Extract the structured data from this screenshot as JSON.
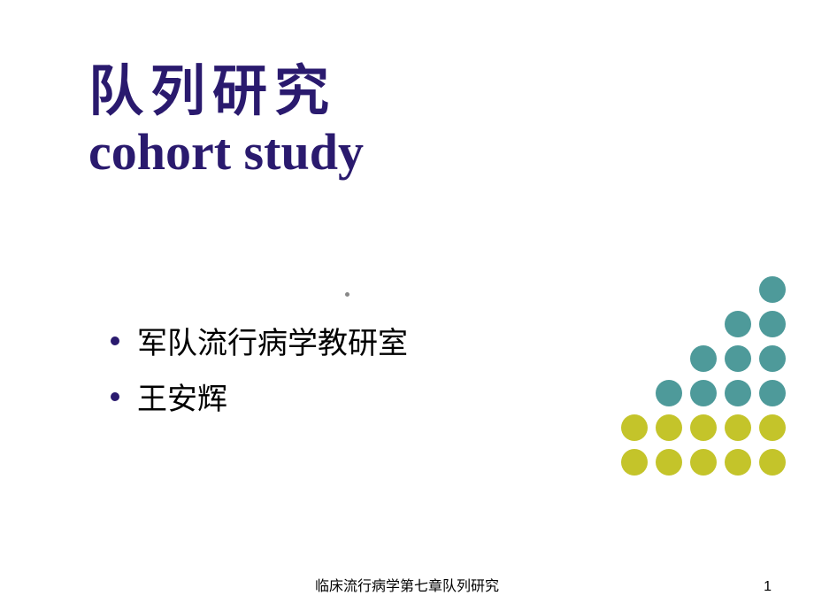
{
  "title": {
    "chinese": "队列研究",
    "english": "cohort  study",
    "color": "#2a1a6e",
    "title_cn_fontsize": 62,
    "title_en_fontsize": 58
  },
  "bullets": {
    "items": [
      {
        "label": "军队流行病学教研室"
      },
      {
        "label": "王安辉"
      }
    ],
    "bullet_color": "#2a1a6e",
    "text_color": "#000000",
    "text_fontsize": 34
  },
  "decoration": {
    "circle_size": 30,
    "gap": 9,
    "rows": [
      {
        "count": 1,
        "color": "#4e9a9a"
      },
      {
        "count": 2,
        "color": "#4e9a9a"
      },
      {
        "count": 3,
        "color": "#4e9a9a"
      },
      {
        "count": 4,
        "color": "#4e9a9a"
      },
      {
        "count": 5,
        "color": "#c4c42a"
      },
      {
        "count": 5,
        "color": "#c4c42a"
      }
    ]
  },
  "footer": {
    "text": "临床流行病学第七章队列研究",
    "page_number": "1",
    "fontsize": 16,
    "color": "#000000"
  },
  "background_color": "#ffffff"
}
